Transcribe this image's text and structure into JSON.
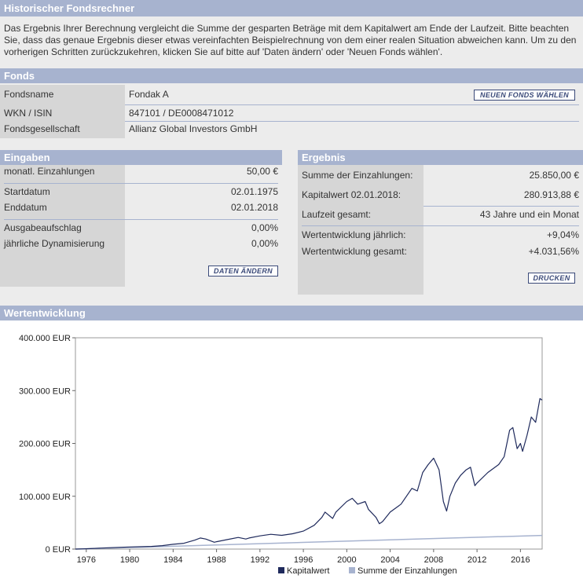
{
  "title": "Historischer Fondsrechner",
  "intro": "Das Ergebnis Ihrer Berechnung vergleicht die Summe der gesparten Beträge mit dem Kapitalwert am Ende der Laufzeit. Bitte beachten Sie, dass das genaue Ergebnis dieser etwas vereinfachten Beispielrechnung von dem einer realen Situation abweichen kann. Um zu den vorherigen Schritten zurückzukehren, klicken Sie auf bitte auf 'Daten ändern' oder 'Neuen Fonds wählen'.",
  "fonds": {
    "header": "Fonds",
    "name_label": "Fondsname",
    "name_value": "Fondak A",
    "wkn_label": "WKN / ISIN",
    "wkn_value": "847101 / DE0008471012",
    "company_label": "Fondsgesellschaft",
    "company_value": "Allianz Global Investors GmbH",
    "new_fund_button": "NEUEN FONDS WÄHLEN"
  },
  "eingaben": {
    "header": "Eingaben",
    "monthly_label": "monatl. Einzahlungen",
    "monthly_value": "50,00 €",
    "start_label": "Startdatum",
    "start_value": "02.01.1975",
    "end_label": "Enddatum",
    "end_value": "02.01.2018",
    "fee_label": "Ausgabeaufschlag",
    "fee_value": "0,00%",
    "dyn_label": "jährliche Dynamisierung",
    "dyn_value": "0,00%",
    "change_button": "DATEN ÄNDERN"
  },
  "ergebnis": {
    "header": "Ergebnis",
    "sum_label": "Summe der Einzahlungen:",
    "sum_value": "25.850,00 €",
    "capital_label": "Kapitalwert 02.01.2018:",
    "capital_value": "280.913,88 €",
    "duration_label": "Laufzeit gesamt:",
    "duration_value": "43 Jahre und ein Monat",
    "annual_label": "Wertentwicklung jährlich:",
    "annual_value": "+9,04%",
    "total_label": "Wertentwicklung gesamt:",
    "total_value": "+4.031,56%",
    "print_button": "DRUCKEN"
  },
  "chart_header": "Wertentwicklung",
  "chart_data": {
    "type": "line",
    "ylim": [
      0,
      400000
    ],
    "xlim": [
      1975,
      2018
    ],
    "y_ticks": [
      "0 EUR",
      "100.000 EUR",
      "200.000 EUR",
      "300.000 EUR",
      "400.000 EUR"
    ],
    "y_tick_values": [
      0,
      100000,
      200000,
      300000,
      400000
    ],
    "x_ticks": [
      "1976",
      "1980",
      "1984",
      "1988",
      "1992",
      "1996",
      "2000",
      "2004",
      "2008",
      "2012",
      "2016"
    ],
    "x_tick_values": [
      1976,
      1980,
      1984,
      1988,
      1992,
      1996,
      2000,
      2004,
      2008,
      2012,
      2016
    ],
    "colors": {
      "kapitalwert": "#1f2a5c",
      "einzahlungen": "#a7b3cf"
    },
    "series": [
      {
        "name": "Kapitalwert",
        "x": [
          1975,
          1976,
          1977,
          1978,
          1979,
          1980,
          1981,
          1982,
          1983,
          1984,
          1985,
          1986,
          1986.5,
          1987,
          1987.8,
          1988,
          1989,
          1990,
          1990.7,
          1991,
          1992,
          1993,
          1994,
          1995,
          1996,
          1997,
          1997.7,
          1998,
          1998.7,
          1999,
          2000,
          2000.5,
          2001,
          2001.7,
          2002,
          2002.7,
          2003,
          2003.3,
          2004,
          2005,
          2006,
          2006.5,
          2007,
          2007.5,
          2008,
          2008.5,
          2008.9,
          2009.2,
          2009.5,
          2010,
          2010.5,
          2011,
          2011.4,
          2011.8,
          2012,
          2013,
          2014,
          2014.5,
          2015,
          2015.3,
          2015.7,
          2016,
          2016.2,
          2016.6,
          2017,
          2017.4,
          2017.8,
          2018
        ],
        "values": [
          0,
          600,
          1500,
          2500,
          3200,
          4000,
          4500,
          5000,
          6500,
          9000,
          11000,
          17000,
          21000,
          19000,
          13000,
          14000,
          18000,
          22000,
          19000,
          21000,
          25000,
          28000,
          26000,
          29000,
          34000,
          45000,
          60000,
          70000,
          58000,
          70000,
          90000,
          96000,
          85000,
          90000,
          75000,
          60000,
          48000,
          52000,
          70000,
          85000,
          115000,
          110000,
          145000,
          160000,
          172000,
          150000,
          90000,
          72000,
          100000,
          125000,
          140000,
          150000,
          155000,
          120000,
          125000,
          145000,
          160000,
          175000,
          225000,
          230000,
          190000,
          200000,
          185000,
          215000,
          250000,
          240000,
          285000,
          282000
        ]
      },
      {
        "name": "Summe der Einzahlungen",
        "x": [
          1975,
          2018
        ],
        "values": [
          0,
          25850
        ]
      }
    ]
  }
}
